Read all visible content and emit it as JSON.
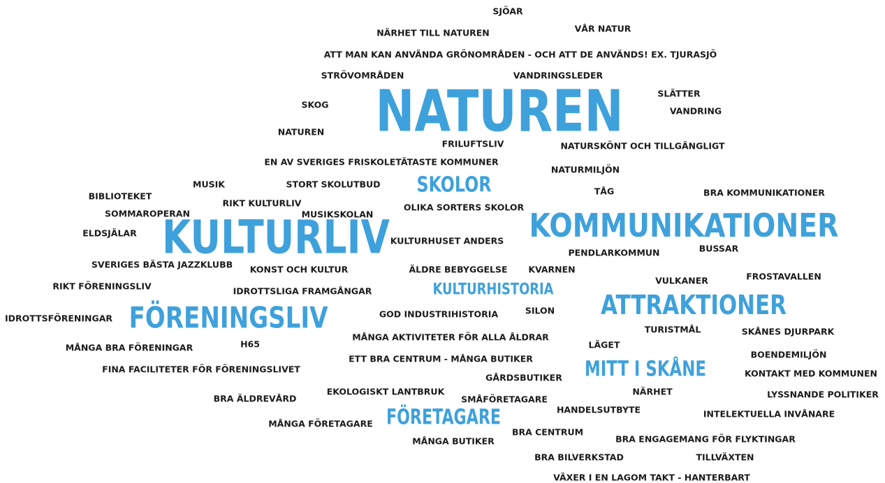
{
  "words": [
    "SJÖAR",
    "NÄRHET TILL NATUREN",
    "VÅR NATUR",
    "ATT MAN KAN ANVÄNDA GRÖNOMRÅDEN - OCH ATT DE ANVÄNDS! EX. TJURASJÖ",
    "STRÖVOMRÅDEN",
    "VANDRINGSLEDER",
    "SLÄTTER",
    "SKOG",
    "NATUREN",
    "VANDRING",
    "NATUREN",
    "FRILUFTSLIV",
    "NATURSKÖNT OCH TILLGÄNGLIGT",
    "EN AV SVERIGES FRISKOLETÄTASTE KOMMUNER",
    "NATURMILJÖN",
    "MUSIK",
    "STORT SKOLUTBUD",
    "SKOLOR",
    "BIBLIOTEKET",
    "TÅG",
    "BRA KOMMUNIKATIONER",
    "RIKT KULTURLIV",
    "OLIKA SORTERS SKOLOR",
    "SOMMAROPERAN",
    "MUSIKSKOLAN",
    "KOMMUNIKATIONER",
    "KULTURLIV",
    "ELDSJÄLAR",
    "KULTURHUSET ANDERS",
    "PENDLARKOMMUN",
    "BUSSAR",
    "SVERIGES BÄSTA JAZZKLUBB",
    "KONST OCH KULTUR",
    "ÄLDRE BEBYGGELSE",
    "KVARNEN",
    "VULKANER",
    "FROSTAVALLEN",
    "RIKT FÖRENINGSLIV",
    "IDROTTSLIGA FRAMGÅNGAR",
    "KULTURHISTORIA",
    "ATTRAKTIONER",
    "IDROTTSFÖRENINGAR",
    "FÖRENINGSLIV",
    "GOD INDUSTRIHISTORIA",
    "SILON",
    "TURISTMÅL",
    "SKÅNES DJURPARK",
    "MÅNGA AKTIVITETER FÖR ALLA ÅLDRAR",
    "LÄGET",
    "MÅNGA BRA FÖRENINGAR",
    "H65",
    "BOENDEMILJÖN",
    "ETT BRA CENTRUM - MÅNGA BUTIKER",
    "MITT I SKÅNE",
    "FINA FACILITETER FÖR FÖRENINGSLIVET",
    "KONTAKT MED KOMMUNEN",
    "GÅRDSBUTIKER",
    "EKOLOGISKT LANTBRUK",
    "NÄRHET",
    "LYSSNANDE POLITIKER",
    "BRA ÄLDREVÅRD",
    "SMÅFÖRETAGARE",
    "HANDELSUTBYTE",
    "INTELEKTUELLA INVÅNARE",
    "FÖRETAGARE",
    "MÅNGA FÖRETAGARE",
    "BRA CENTRUM",
    "MÅNGA BUTIKER",
    "BRA ENGAGEMANG FÖR FLYKTINGAR",
    "BRA BILVERKSTAD",
    "TILLVÄXTEN",
    "VÄXER I EN LAGOM TAKT - HANTERBART"
  ]
}
